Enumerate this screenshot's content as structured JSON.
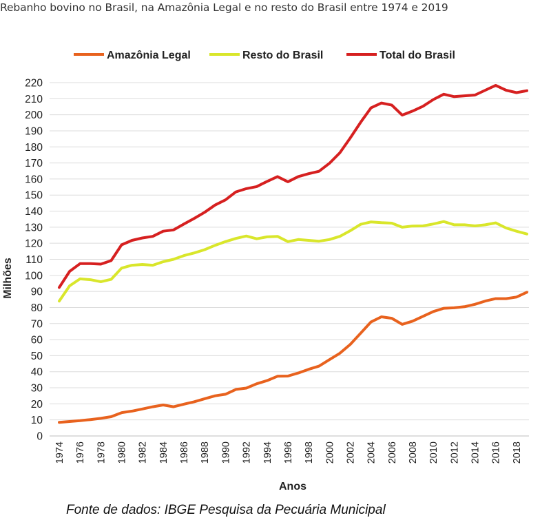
{
  "title": "Rebanho bovino no Brasil, na Amazônia Legal e no resto do Brasil entre 1974 e 2019",
  "source": "Fonte de dados: IBGE Pesquisa da Pecuária Municipal",
  "chart_data": {
    "type": "line",
    "title": "Rebanho bovino no Brasil, na Amazônia Legal e no resto do Brasil entre 1974 e 2019",
    "xlabel": "Anos",
    "ylabel": "Milhões",
    "ylim": [
      0,
      220
    ],
    "yticks": [
      0,
      10,
      20,
      30,
      40,
      50,
      60,
      70,
      80,
      90,
      100,
      110,
      120,
      130,
      140,
      150,
      160,
      170,
      180,
      190,
      200,
      210,
      220
    ],
    "xticks": [
      "1974",
      "1976",
      "1978",
      "1980",
      "1982",
      "1984",
      "1986",
      "1988",
      "1990",
      "1992",
      "1994",
      "1996",
      "1998",
      "2000",
      "2002",
      "2004",
      "2006",
      "2008",
      "2010",
      "2012",
      "2014",
      "2016",
      "2018"
    ],
    "grid": true,
    "legend_position": "top",
    "x": [
      1974,
      1975,
      1976,
      1977,
      1978,
      1979,
      1980,
      1981,
      1982,
      1983,
      1984,
      1985,
      1986,
      1987,
      1988,
      1989,
      1990,
      1991,
      1992,
      1993,
      1994,
      1995,
      1996,
      1997,
      1998,
      1999,
      2000,
      2001,
      2002,
      2003,
      2004,
      2005,
      2006,
      2007,
      2008,
      2009,
      2010,
      2011,
      2012,
      2013,
      2014,
      2015,
      2016,
      2017,
      2018,
      2019
    ],
    "series": [
      {
        "name": "Amazônia Legal",
        "color": "#e8621e",
        "values": [
          8.5,
          9,
          9.5,
          10.2,
          11,
          12,
          14.5,
          15.5,
          16.8,
          18.2,
          19.3,
          18.2,
          19.8,
          21.3,
          23.2,
          25,
          26,
          29,
          29.8,
          32.5,
          34.5,
          37.2,
          37.3,
          39.2,
          41.5,
          43.5,
          47.5,
          51.5,
          57,
          64,
          71,
          74.2,
          73.3,
          69.5,
          71.5,
          74.5,
          77.5,
          79.5,
          79.8,
          80.5,
          82,
          84,
          85.5,
          85.5,
          86.5,
          89.5
        ]
      },
      {
        "name": "Resto do Brasil",
        "color": "#d9e62b",
        "values": [
          84,
          93.5,
          97.8,
          97.3,
          96,
          97.5,
          104.5,
          106.3,
          106.8,
          106.3,
          108.5,
          110,
          112.3,
          114,
          116,
          118.7,
          121,
          123,
          124.5,
          122.8,
          124,
          124.3,
          121,
          122.3,
          121.8,
          121.3,
          122.3,
          124.3,
          127.8,
          131.8,
          133.3,
          132.8,
          132.5,
          130,
          130.7,
          130.8,
          132,
          133.5,
          131.5,
          131.5,
          130.8,
          131.5,
          132.7,
          129.5,
          127.5,
          125.8
        ]
      },
      {
        "name": "Total do Brasil",
        "color": "#d62020",
        "values": [
          92.5,
          102.5,
          107.3,
          107.3,
          107,
          109.2,
          119,
          121.8,
          123.3,
          124.3,
          127.5,
          128.3,
          132,
          135.5,
          139.3,
          143.8,
          147,
          152,
          154,
          155.3,
          158.5,
          161.5,
          158.3,
          161.5,
          163.3,
          164.8,
          169.8,
          176.3,
          185.5,
          195.3,
          204.3,
          207.3,
          206,
          199.8,
          202.3,
          205.3,
          209.5,
          212.8,
          211.3,
          211.8,
          212.3,
          215.3,
          218.3,
          215.3,
          213.8,
          215
        ]
      }
    ]
  }
}
